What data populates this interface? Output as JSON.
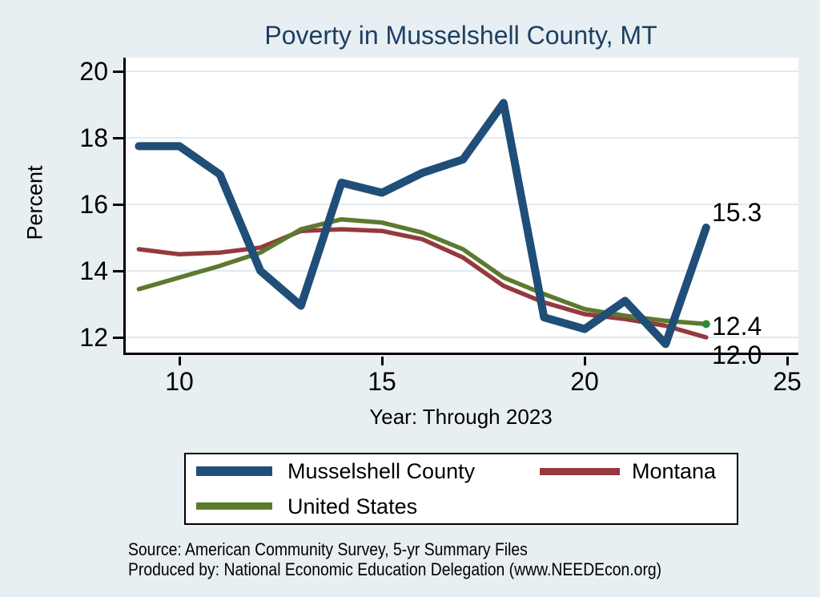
{
  "title": "Poverty in Musselshell County, MT",
  "y_axis": {
    "label": "Percent",
    "ticks": [
      20,
      18,
      16,
      14,
      12
    ]
  },
  "x_axis": {
    "label": "Year: Through 2023",
    "ticks": [
      10,
      15,
      20,
      25
    ]
  },
  "legend": {
    "items": [
      {
        "label": "Musselshell County",
        "color": "#1f4e78"
      },
      {
        "label": "Montana",
        "color": "#943a3e"
      },
      {
        "label": "United States",
        "color": "#5c7a2f"
      }
    ]
  },
  "footer": {
    "line1": "Source: American Community Survey, 5-yr Summary Files",
    "line2": "Produced by: National Economic Education Delegation (www.NEEDEcon.org)"
  },
  "colors": {
    "background": "#e8eff2",
    "plot_background": "#ffffff",
    "gridline": "#e0ebee",
    "axis": "#000000",
    "title": "#1e3f63",
    "musselshell": "#1f4e78",
    "montana": "#943a3e",
    "united_states": "#5c7a2f",
    "us_end_marker": "#2e8b35"
  },
  "chart_data": {
    "type": "line",
    "title": "Poverty in Musselshell County, MT",
    "xlabel": "Year: Through 2023",
    "ylabel": "Percent",
    "x": [
      9,
      10,
      11,
      12,
      13,
      14,
      15,
      16,
      17,
      18,
      19,
      20,
      21,
      22,
      23
    ],
    "x_ticks": [
      10,
      15,
      20,
      25
    ],
    "y_ticks": [
      12,
      14,
      16,
      18,
      20
    ],
    "xlim": [
      8.7,
      25.3
    ],
    "ylim": [
      11.5,
      20.4
    ],
    "grid": true,
    "legend_position": "bottom",
    "series": [
      {
        "name": "Musselshell County",
        "color": "#1f4e78",
        "stroke_width": 10,
        "values": [
          17.75,
          17.75,
          16.9,
          14.0,
          12.95,
          16.65,
          16.35,
          16.95,
          17.35,
          19.05,
          12.6,
          12.25,
          13.1,
          11.8,
          15.3
        ],
        "end_label": "15.3"
      },
      {
        "name": "Montana",
        "color": "#943a3e",
        "stroke_width": 5.5,
        "values": [
          14.65,
          14.5,
          14.55,
          14.7,
          15.2,
          15.25,
          15.2,
          14.95,
          14.4,
          13.55,
          13.05,
          12.7,
          12.55,
          12.35,
          12.0
        ],
        "end_label": "12.0"
      },
      {
        "name": "United States",
        "color": "#5c7a2f",
        "stroke_width": 5.5,
        "values": [
          13.45,
          13.8,
          14.15,
          14.55,
          15.25,
          15.55,
          15.45,
          15.15,
          14.65,
          13.8,
          13.3,
          12.85,
          12.65,
          12.5,
          12.4
        ],
        "end_label": "12.4",
        "end_marker": true,
        "end_marker_color": "#2e8b35"
      }
    ]
  }
}
